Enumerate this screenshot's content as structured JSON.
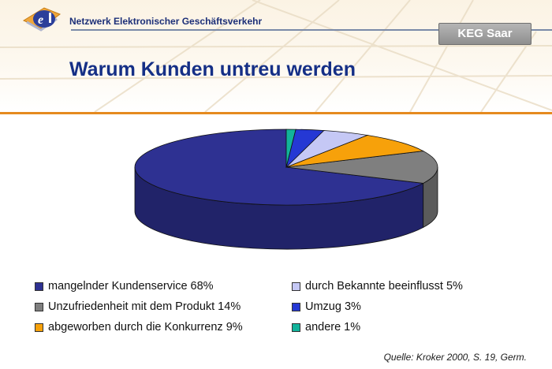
{
  "header": {
    "network_name": "Netzwerk Elektronischer Geschäftsverkehr",
    "badge": "KEG Saar",
    "title": "Warum Kunden untreu werden"
  },
  "chart_data": {
    "type": "pie",
    "title": "Warum Kunden untreu werden",
    "three_d": true,
    "legend_position": "bottom",
    "slices": [
      {
        "label": "mangelnder Kundenservice 68%",
        "value": 68,
        "color": "#2e3192"
      },
      {
        "label": "Unzufriedenheit mit dem Produkt 14%",
        "value": 14,
        "color": "#7f7f7f"
      },
      {
        "label": "abgeworben durch die Konkurrenz 9%",
        "value": 9,
        "color": "#f7a10a"
      },
      {
        "label": "durch Bekannte beeinflusst 5%",
        "value": 5,
        "color": "#c5c8f5"
      },
      {
        "label": "Umzug 3%",
        "value": 3,
        "color": "#2538d4"
      },
      {
        "label": "andere 1%",
        "value": 1,
        "color": "#12b39b"
      }
    ]
  },
  "source": "Quelle: Kroker 2000, S. 19, Germ."
}
